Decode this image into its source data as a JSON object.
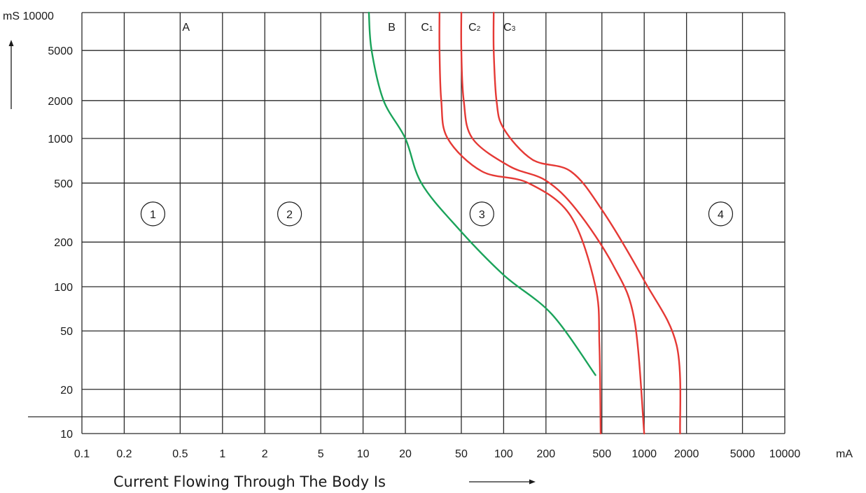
{
  "chart_data": {
    "type": "line",
    "title": "",
    "xlabel": "Current Flowing Through The Body Is",
    "y_top_label": "mS 10000",
    "x_unit": "mA",
    "x_scale": "log",
    "y_scale": "log",
    "xlim": [
      0.1,
      10000
    ],
    "ylim": [
      10,
      10000
    ],
    "grid": true,
    "x_ticks": [
      {
        "value": 0.1,
        "label": "0.1"
      },
      {
        "value": 0.2,
        "label": "0.2"
      },
      {
        "value": 0.5,
        "label": "0.5"
      },
      {
        "value": 1,
        "label": "1"
      },
      {
        "value": 2,
        "label": "2"
      },
      {
        "value": 5,
        "label": "5"
      },
      {
        "value": 10,
        "label": "10"
      },
      {
        "value": 20,
        "label": "20"
      },
      {
        "value": 50,
        "label": "50"
      },
      {
        "value": 100,
        "label": "100"
      },
      {
        "value": 200,
        "label": "200"
      },
      {
        "value": 500,
        "label": "500"
      },
      {
        "value": 1000,
        "label": "1000"
      },
      {
        "value": 2000,
        "label": "2000"
      },
      {
        "value": 5000,
        "label": "5000"
      },
      {
        "value": 10000,
        "label": "10000"
      }
    ],
    "y_ticks": [
      {
        "value": 10,
        "label": "10"
      },
      {
        "value": 20,
        "label": "20"
      },
      {
        "value": 50,
        "label": "50"
      },
      {
        "value": 100,
        "label": "100"
      },
      {
        "value": 200,
        "label": "200"
      },
      {
        "value": 500,
        "label": "500"
      },
      {
        "value": 1000,
        "label": "1000"
      },
      {
        "value": 2000,
        "label": "2000"
      },
      {
        "value": 5000,
        "label": "5000"
      },
      {
        "value": 10000,
        "label": ""
      }
    ],
    "series": [
      {
        "name": "B",
        "color": "#1aa35a",
        "points": [
          [
            11,
            10000
          ],
          [
            11.5,
            5000
          ],
          [
            14,
            2000
          ],
          [
            20,
            1000
          ],
          [
            26,
            500
          ],
          [
            47,
            250
          ],
          [
            100,
            120
          ],
          [
            220,
            65
          ],
          [
            450,
            25
          ]
        ]
      },
      {
        "name": "C1",
        "color": "#e53935",
        "points": [
          [
            35,
            10000
          ],
          [
            35,
            5000
          ],
          [
            36,
            2000
          ],
          [
            40,
            1000
          ],
          [
            70,
            600
          ],
          [
            150,
            500
          ],
          [
            300,
            300
          ],
          [
            450,
            100
          ],
          [
            480,
            40
          ],
          [
            490,
            10
          ]
        ]
      },
      {
        "name": "C2",
        "color": "#e53935",
        "points": [
          [
            50,
            10000
          ],
          [
            50,
            5000
          ],
          [
            52,
            2000
          ],
          [
            60,
            1000
          ],
          [
            110,
            650
          ],
          [
            200,
            520
          ],
          [
            330,
            330
          ],
          [
            600,
            140
          ],
          [
            850,
            60
          ],
          [
            1000,
            10
          ]
        ]
      },
      {
        "name": "C3",
        "color": "#e53935",
        "points": [
          [
            85,
            10000
          ],
          [
            85,
            5000
          ],
          [
            89,
            2000
          ],
          [
            100,
            1200
          ],
          [
            160,
            720
          ],
          [
            300,
            600
          ],
          [
            500,
            330
          ],
          [
            1000,
            110
          ],
          [
            1700,
            40
          ],
          [
            1800,
            10
          ]
        ]
      }
    ],
    "series_labels": [
      {
        "text": "A",
        "x": 0.55
      },
      {
        "text": "B",
        "x": 16
      },
      {
        "text": "C",
        "sub": "1",
        "x": 28.5
      },
      {
        "text": "C",
        "sub": "2",
        "x": 62
      },
      {
        "text": "C",
        "sub": "3",
        "x": 110
      }
    ],
    "zones": [
      {
        "label": "1",
        "x": 0.32,
        "y": 300
      },
      {
        "label": "2",
        "x": 3,
        "y": 300
      },
      {
        "label": "3",
        "x": 70,
        "y": 300
      },
      {
        "label": "4",
        "x": 3500,
        "y": 300
      }
    ]
  }
}
